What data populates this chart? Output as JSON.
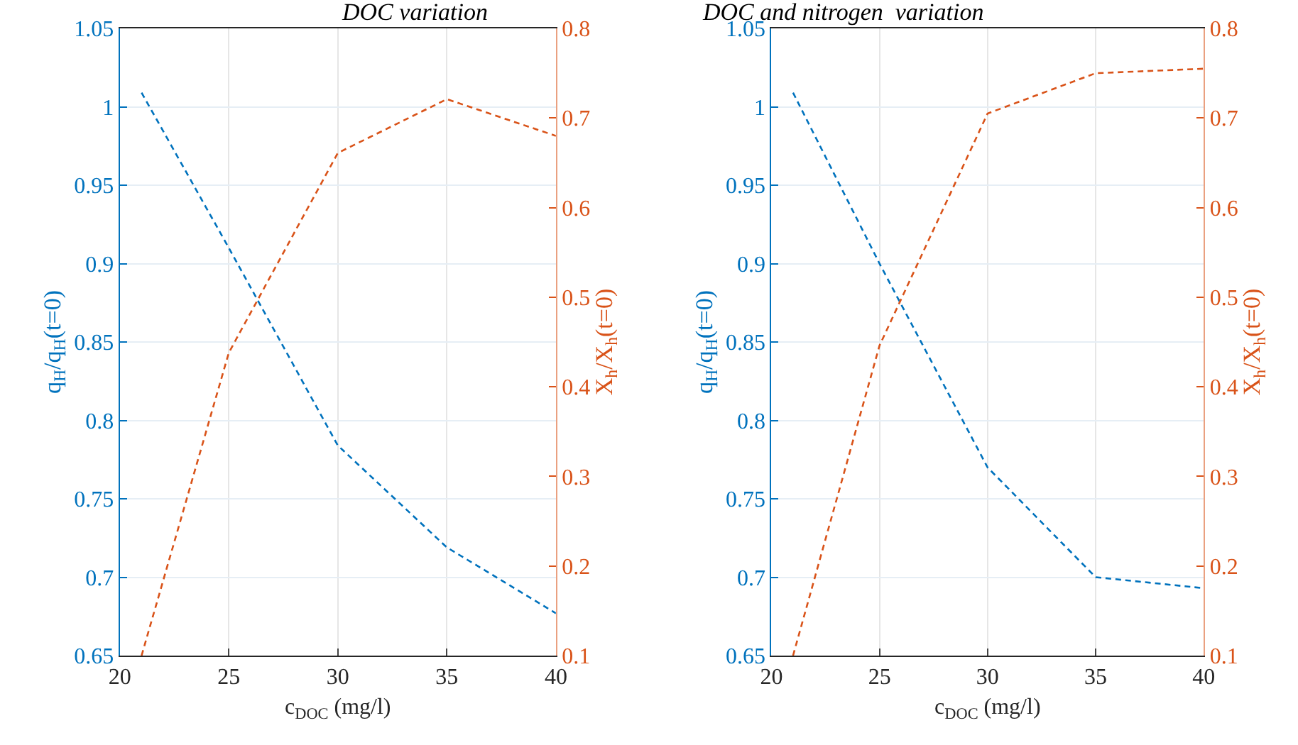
{
  "chart_data": [
    {
      "type": "line",
      "title": "DOC variation",
      "xlabel": "c$_{DOC}$ (mg/l)",
      "ylabel": "q$_{H}$/q$_{H}$(t=0)",
      "y2label": "X$_{h}$/X$_{h}$(t=0)",
      "x": [
        21,
        25,
        30,
        35,
        40
      ],
      "xlim": [
        20,
        40
      ],
      "xticks": [
        20,
        25,
        30,
        35,
        40
      ],
      "ylim": [
        0.65,
        1.05
      ],
      "yticks": [
        0.65,
        0.7,
        0.75,
        0.8,
        0.85,
        0.9,
        0.95,
        1,
        1.05
      ],
      "y2lim": [
        0.1,
        0.8
      ],
      "y2ticks": [
        0.1,
        0.2,
        0.3,
        0.4,
        0.5,
        0.6,
        0.7,
        0.8
      ],
      "grid": true,
      "line_style": "dashed",
      "marker": "none",
      "series": [
        {
          "color": "#0072bd",
          "values": [
            1.009,
            0.91,
            0.784,
            0.719,
            0.677
          ]
        },
        {
          "color": "#d95319",
          "axis": "y2",
          "values": [
            0.1,
            0.438,
            0.661,
            0.721,
            0.68
          ]
        }
      ]
    },
    {
      "type": "line",
      "title": "DOC and nitrogen  variation",
      "xlabel": "c$_{DOC}$ (mg/l)",
      "ylabel": "q$_{H}$/q$_{H}$(t=0)",
      "y2label": "X$_{h}$/X$_{h}$(t=0)",
      "x": [
        21,
        25,
        30,
        35,
        40
      ],
      "xlim": [
        20,
        40
      ],
      "xticks": [
        20,
        25,
        30,
        35,
        40
      ],
      "ylim": [
        0.65,
        1.05
      ],
      "yticks": [
        0.65,
        0.7,
        0.75,
        0.8,
        0.85,
        0.9,
        0.95,
        1,
        1.05
      ],
      "y2lim": [
        0.1,
        0.8
      ],
      "y2ticks": [
        0.1,
        0.2,
        0.3,
        0.4,
        0.5,
        0.6,
        0.7,
        0.8
      ],
      "grid": true,
      "line_style": "dashed",
      "marker": "none",
      "series": [
        {
          "color": "#0072bd",
          "values": [
            1.009,
            0.9,
            0.77,
            0.7,
            0.693
          ]
        },
        {
          "color": "#d95319",
          "axis": "y2",
          "values": [
            0.1,
            0.446,
            0.705,
            0.75,
            0.755
          ]
        }
      ]
    }
  ]
}
